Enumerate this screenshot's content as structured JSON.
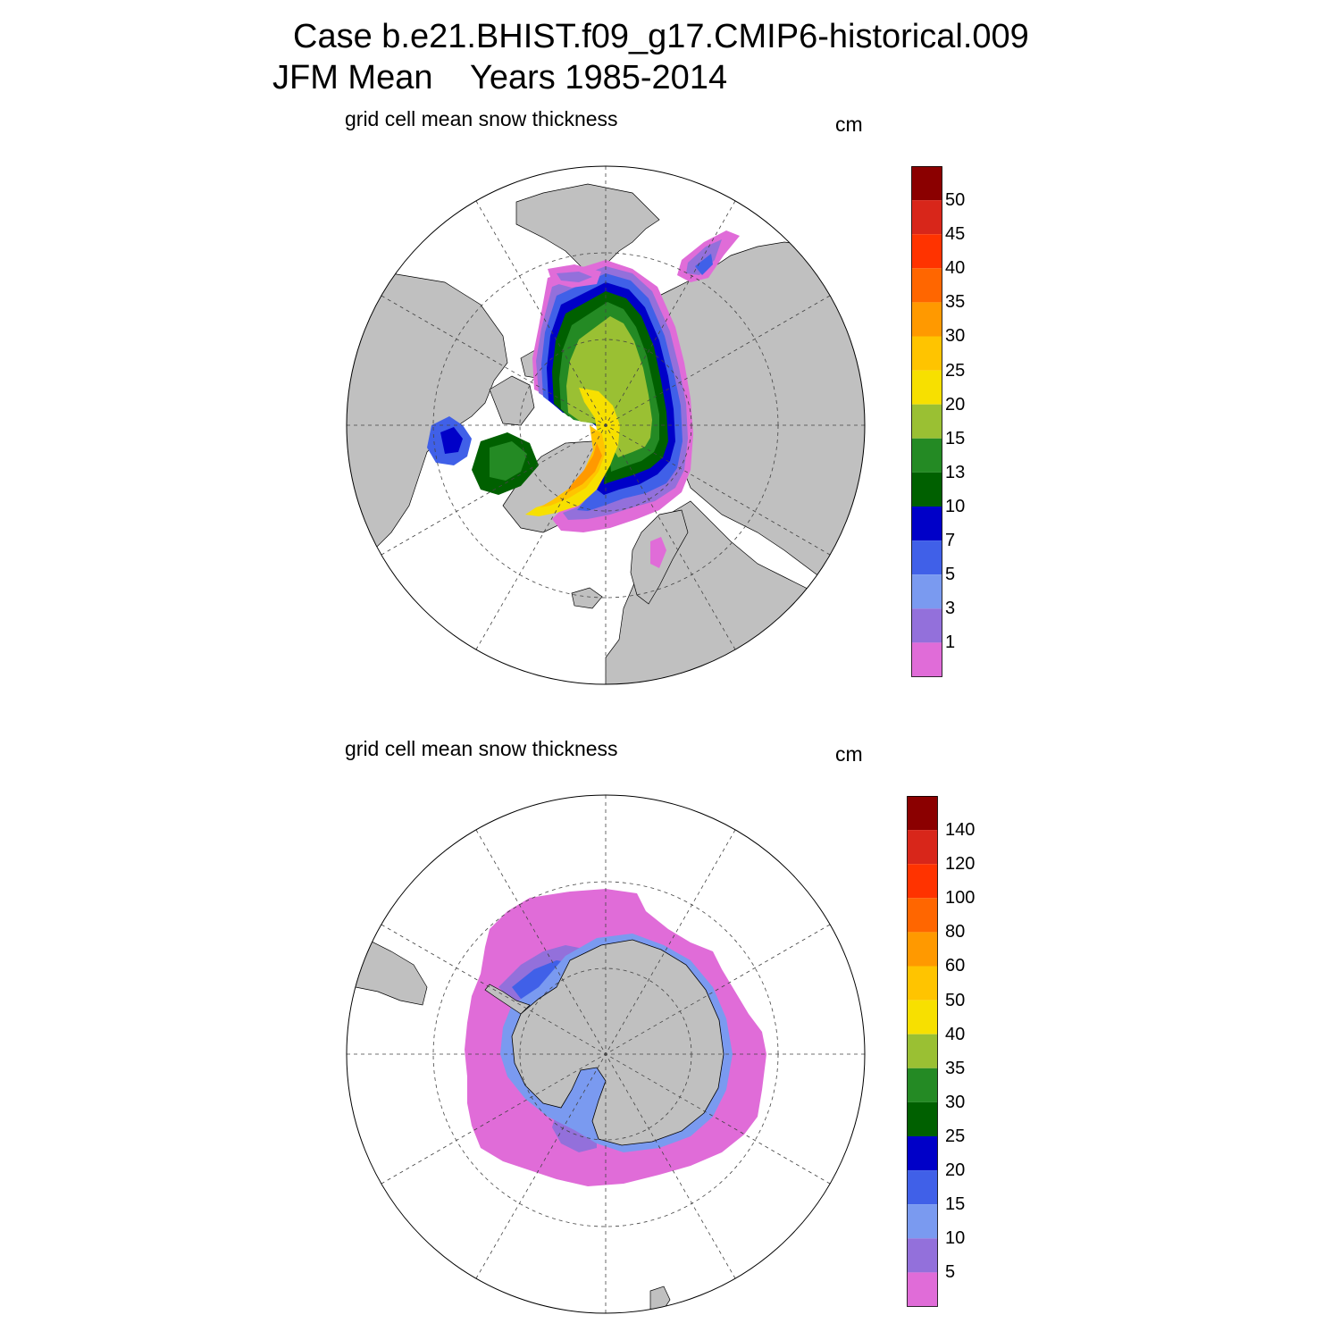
{
  "figure": {
    "title_line1": "Case b.e21.BHIST.f09_g17.CMIP6-historical.009",
    "title_line2": "JFM Mean    Years 1985-2014"
  },
  "panels": [
    {
      "id": "north",
      "label": "grid cell mean snow thickness",
      "units": "cm",
      "colorbar_ticks": [
        "50",
        "45",
        "40",
        "35",
        "30",
        "25",
        "20",
        "15",
        "13",
        "10",
        "7",
        "5",
        "3",
        "1"
      ]
    },
    {
      "id": "south",
      "label": "grid cell mean snow thickness",
      "units": "cm",
      "colorbar_ticks": [
        "140",
        "120",
        "100",
        "80",
        "60",
        "50",
        "40",
        "35",
        "30",
        "25",
        "20",
        "15",
        "10",
        "5"
      ]
    }
  ],
  "colors": {
    "palette_high_to_low": [
      "#8b0000",
      "#d8261a",
      "#ff3300",
      "#ff6600",
      "#ff9900",
      "#ffc400",
      "#f7e000",
      "#9ac033",
      "#248a24",
      "#006000",
      "#0000c8",
      "#4060e8",
      "#7a9af0",
      "#9370db",
      "#e06cd8"
    ],
    "land": "#c0c0c0",
    "ocean": "#ffffff"
  }
}
